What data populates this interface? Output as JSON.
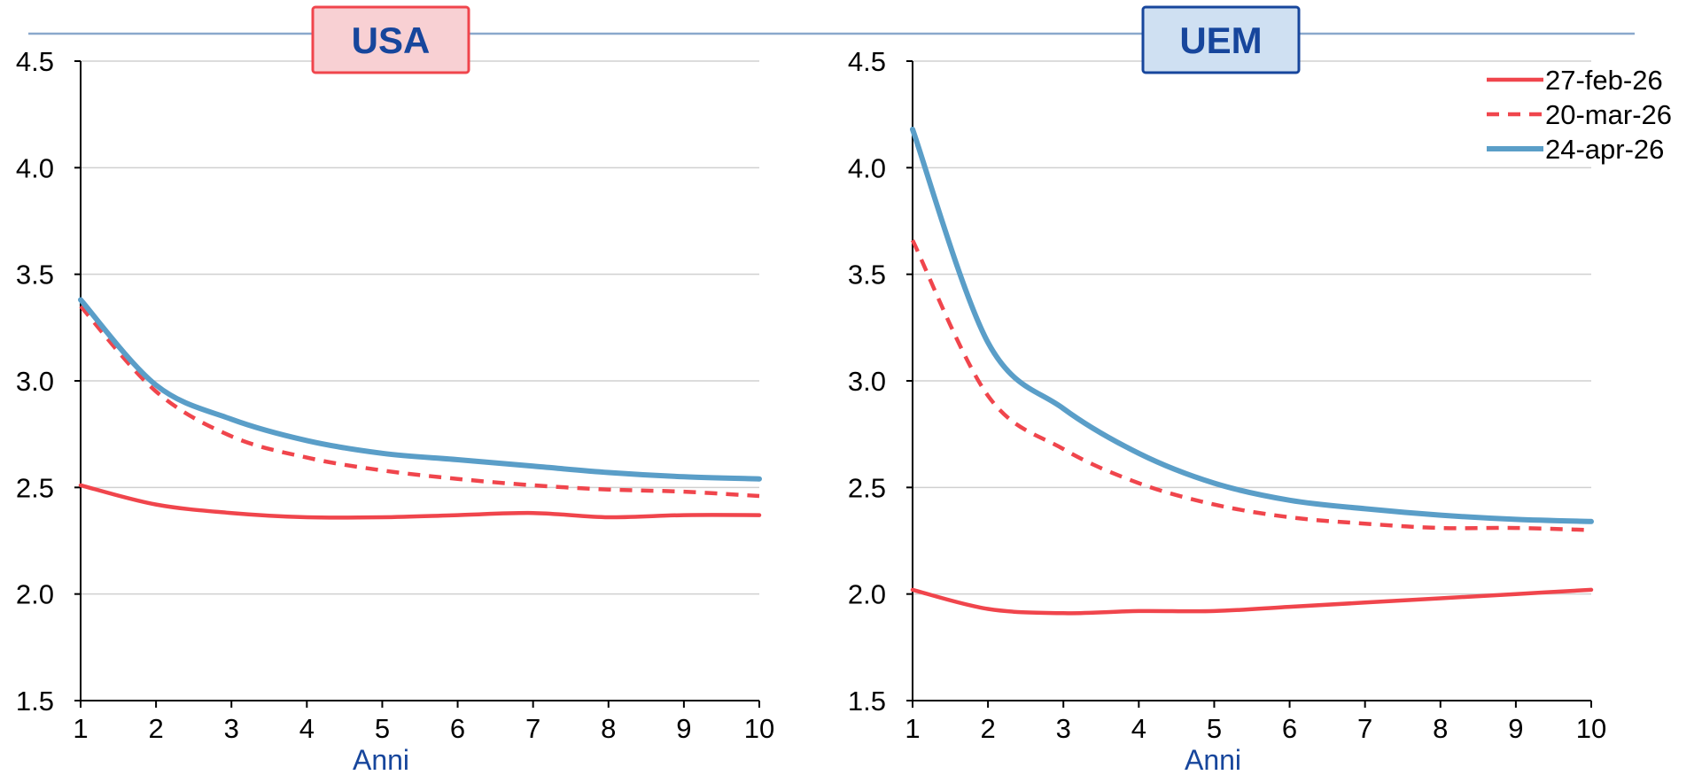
{
  "colors": {
    "red": "#f0454c",
    "blue": "#5a9ec8",
    "grid": "#d0d0d0",
    "header_line": "#8aa8cc",
    "usa_badge_fill": "#f8d0d3",
    "usa_badge_text": "#17469c",
    "usa_badge_border": "#f0454c",
    "uem_badge_fill": "#cfe0f2",
    "uem_badge_text": "#17469c",
    "uem_badge_border": "#17469c",
    "axis_label": "#17469c"
  },
  "legend": {
    "placement": "top-right",
    "items": [
      {
        "label": "27-feb-26",
        "color": "#f0454c",
        "style": "solid"
      },
      {
        "label": "20-mar-26",
        "color": "#f0454c",
        "style": "dashed"
      },
      {
        "label": "24-apr-26",
        "color": "#5a9ec8",
        "style": "solid"
      }
    ]
  },
  "chart_data": [
    {
      "type": "line",
      "title": "USA",
      "xlabel": "Anni",
      "ylabel": "",
      "x": [
        1,
        2,
        3,
        4,
        5,
        6,
        7,
        8,
        9,
        10
      ],
      "xlim": [
        1,
        10
      ],
      "ylim": [
        1.5,
        4.5
      ],
      "yticks": [
        "1.5",
        "2.0",
        "2.5",
        "3.0",
        "3.5",
        "4.0",
        "4.5"
      ],
      "xticks": [
        "1",
        "2",
        "3",
        "4",
        "5",
        "6",
        "7",
        "8",
        "9",
        "10"
      ],
      "grid": "horizontal",
      "series": [
        {
          "name": "27-feb-26",
          "values": [
            2.51,
            2.42,
            2.38,
            2.36,
            2.36,
            2.37,
            2.38,
            2.36,
            2.37,
            2.37
          ]
        },
        {
          "name": "20-mar-26",
          "values": [
            3.35,
            2.95,
            2.74,
            2.64,
            2.58,
            2.54,
            2.51,
            2.49,
            2.48,
            2.46
          ]
        },
        {
          "name": "24-apr-26",
          "values": [
            3.38,
            2.98,
            2.82,
            2.72,
            2.66,
            2.63,
            2.6,
            2.57,
            2.55,
            2.54
          ]
        }
      ]
    },
    {
      "type": "line",
      "title": "UEM",
      "xlabel": "Anni",
      "ylabel": "",
      "x": [
        1,
        2,
        3,
        4,
        5,
        6,
        7,
        8,
        9,
        10
      ],
      "xlim": [
        1,
        10
      ],
      "ylim": [
        1.5,
        4.5
      ],
      "yticks": [
        "1.5",
        "2.0",
        "2.5",
        "3.0",
        "3.5",
        "4.0",
        "4.5"
      ],
      "xticks": [
        "1",
        "2",
        "3",
        "4",
        "5",
        "6",
        "7",
        "8",
        "9",
        "10"
      ],
      "grid": "horizontal",
      "series": [
        {
          "name": "27-feb-26",
          "values": [
            2.02,
            1.93,
            1.91,
            1.92,
            1.92,
            1.94,
            1.96,
            1.98,
            2.0,
            2.02
          ]
        },
        {
          "name": "20-mar-26",
          "values": [
            3.66,
            2.93,
            2.68,
            2.52,
            2.42,
            2.36,
            2.33,
            2.31,
            2.31,
            2.3
          ]
        },
        {
          "name": "24-apr-26",
          "values": [
            4.18,
            3.18,
            2.87,
            2.66,
            2.52,
            2.44,
            2.4,
            2.37,
            2.35,
            2.34
          ]
        }
      ]
    }
  ]
}
